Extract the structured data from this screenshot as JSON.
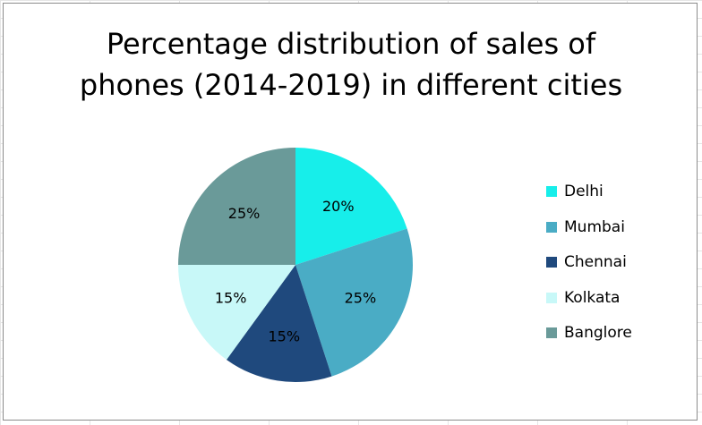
{
  "chart_data": {
    "type": "pie",
    "title_lines": [
      "Percentage distribution of sales of",
      "phones (2014-2019) in different cities"
    ],
    "categories": [
      "Delhi",
      "Mumbai",
      "Chennai",
      "Kolkata",
      "Banglore"
    ],
    "values": [
      20,
      25,
      15,
      15,
      25
    ],
    "value_labels": [
      "20%",
      "25%",
      "15%",
      "15%",
      "25%"
    ],
    "colors": [
      "#17eeea",
      "#4aacc5",
      "#1f497d",
      "#c8f8f8",
      "#6a9a99"
    ],
    "legend_position": "right",
    "start_angle": "12 o'clock",
    "direction": "clockwise"
  }
}
